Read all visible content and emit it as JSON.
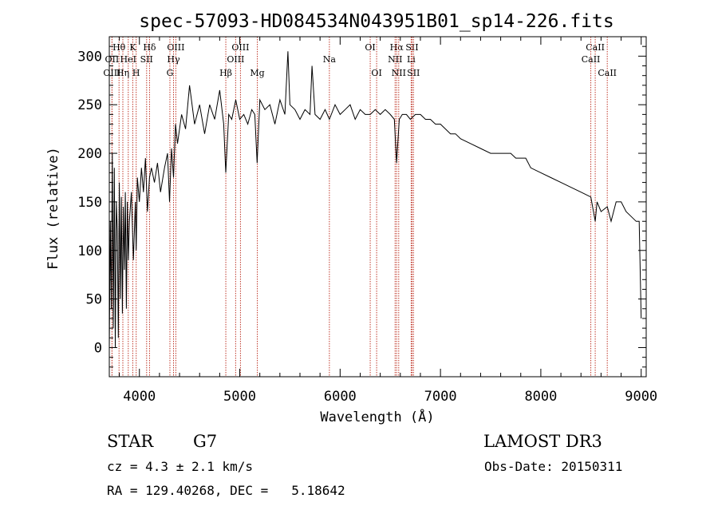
{
  "chart_data": {
    "type": "line",
    "title": "spec-57093-HD084534N043951B01_sp14-226.fits",
    "xlabel": "Wavelength (Å)",
    "ylabel": "Flux (relative)",
    "xlim": [
      3700,
      9050
    ],
    "ylim": [
      -30,
      320
    ],
    "x_ticks": [
      4000,
      5000,
      6000,
      7000,
      8000,
      9000
    ],
    "y_ticks": [
      0,
      50,
      100,
      150,
      200,
      250,
      300
    ],
    "series": [
      {
        "name": "spectrum",
        "x": [
          3700,
          3710,
          3720,
          3730,
          3740,
          3750,
          3760,
          3770,
          3780,
          3790,
          3800,
          3810,
          3820,
          3830,
          3840,
          3850,
          3860,
          3870,
          3880,
          3890,
          3900,
          3920,
          3940,
          3960,
          3968,
          3980,
          4000,
          4020,
          4040,
          4060,
          4080,
          4101,
          4120,
          4150,
          4180,
          4210,
          4250,
          4280,
          4300,
          4320,
          4340,
          4360,
          4380,
          4420,
          4460,
          4500,
          4550,
          4600,
          4650,
          4700,
          4750,
          4800,
          4840,
          4861,
          4890,
          4920,
          4960,
          5000,
          5040,
          5080,
          5120,
          5150,
          5173,
          5200,
          5250,
          5300,
          5350,
          5400,
          5450,
          5480,
          5500,
          5550,
          5600,
          5650,
          5700,
          5720,
          5750,
          5800,
          5850,
          5893,
          5950,
          6000,
          6050,
          6100,
          6150,
          6200,
          6250,
          6300,
          6350,
          6400,
          6450,
          6500,
          6540,
          6563,
          6590,
          6620,
          6660,
          6700,
          6750,
          6800,
          6850,
          6900,
          6950,
          7000,
          7050,
          7100,
          7150,
          7200,
          7300,
          7400,
          7500,
          7600,
          7700,
          7750,
          7800,
          7850,
          7900,
          8000,
          8100,
          8200,
          8300,
          8400,
          8498,
          8542,
          8560,
          8600,
          8662,
          8700,
          8750,
          8800,
          8850,
          8900,
          8950,
          8980,
          9000
        ],
        "y": [
          0,
          130,
          40,
          200,
          20,
          185,
          0,
          150,
          120,
          10,
          170,
          50,
          155,
          35,
          145,
          80,
          160,
          40,
          150,
          90,
          130,
          160,
          90,
          150,
          100,
          175,
          150,
          185,
          160,
          195,
          140,
          175,
          185,
          170,
          190,
          160,
          185,
          200,
          150,
          205,
          175,
          230,
          210,
          240,
          225,
          270,
          230,
          250,
          220,
          250,
          235,
          265,
          230,
          180,
          240,
          235,
          255,
          235,
          240,
          230,
          245,
          240,
          190,
          255,
          245,
          250,
          230,
          255,
          240,
          305,
          250,
          245,
          235,
          245,
          240,
          290,
          240,
          235,
          245,
          235,
          250,
          240,
          245,
          250,
          235,
          245,
          240,
          240,
          245,
          240,
          245,
          240,
          235,
          190,
          235,
          240,
          240,
          235,
          240,
          240,
          235,
          235,
          230,
          230,
          225,
          220,
          220,
          215,
          210,
          205,
          200,
          200,
          200,
          195,
          195,
          195,
          185,
          180,
          175,
          170,
          165,
          160,
          155,
          130,
          150,
          140,
          145,
          130,
          150,
          150,
          140,
          135,
          130,
          130,
          30
        ]
      }
    ],
    "line_markers": [
      {
        "label": "Hθ",
        "x": 3797,
        "row": 1
      },
      {
        "label": "OII",
        "x": 3727,
        "row": 2
      },
      {
        "label": "OIII",
        "x": 3727,
        "row": 3
      },
      {
        "label": "K",
        "x": 3934,
        "row": 1
      },
      {
        "label": "HeI",
        "x": 3889,
        "row": 2
      },
      {
        "label": "Hη",
        "x": 3835,
        "row": 3
      },
      {
        "label": "Hδ",
        "x": 4101,
        "row": 1
      },
      {
        "label": "SII",
        "x": 4072,
        "row": 2
      },
      {
        "label": "H",
        "x": 3968,
        "row": 3
      },
      {
        "label": "OIII",
        "x": 4363,
        "row": 1
      },
      {
        "label": "Hγ",
        "x": 4340,
        "row": 2
      },
      {
        "label": "G",
        "x": 4304,
        "row": 3
      },
      {
        "label": "Hβ",
        "x": 4861,
        "row": 3
      },
      {
        "label": "OIII",
        "x": 5007,
        "row": 1
      },
      {
        "label": "OIII",
        "x": 4959,
        "row": 2
      },
      {
        "label": "Mg",
        "x": 5175,
        "row": 3
      },
      {
        "label": "Na",
        "x": 5893,
        "row": 2
      },
      {
        "label": "OI",
        "x": 6300,
        "row": 1
      },
      {
        "label": "OI",
        "x": 6364,
        "row": 3
      },
      {
        "label": "Hα",
        "x": 6563,
        "row": 1
      },
      {
        "label": "SII",
        "x": 6717,
        "row": 1
      },
      {
        "label": "NII",
        "x": 6548,
        "row": 2
      },
      {
        "label": "Li",
        "x": 6708,
        "row": 2
      },
      {
        "label": "NII",
        "x": 6584,
        "row": 3
      },
      {
        "label": "SII",
        "x": 6731,
        "row": 3
      },
      {
        "label": "CaII",
        "x": 8542,
        "row": 1
      },
      {
        "label": "CaII",
        "x": 8498,
        "row": 2
      },
      {
        "label": "CaII",
        "x": 8662,
        "row": 3
      }
    ]
  },
  "info": {
    "object_type": "STAR",
    "subclass": "G7",
    "survey": "LAMOST DR3",
    "redshift": "cz = 4.3 ± 2.1 km/s",
    "obs_date": "Obs-Date: 20150311",
    "coords": "RA = 129.40268, DEC =   5.18642"
  }
}
